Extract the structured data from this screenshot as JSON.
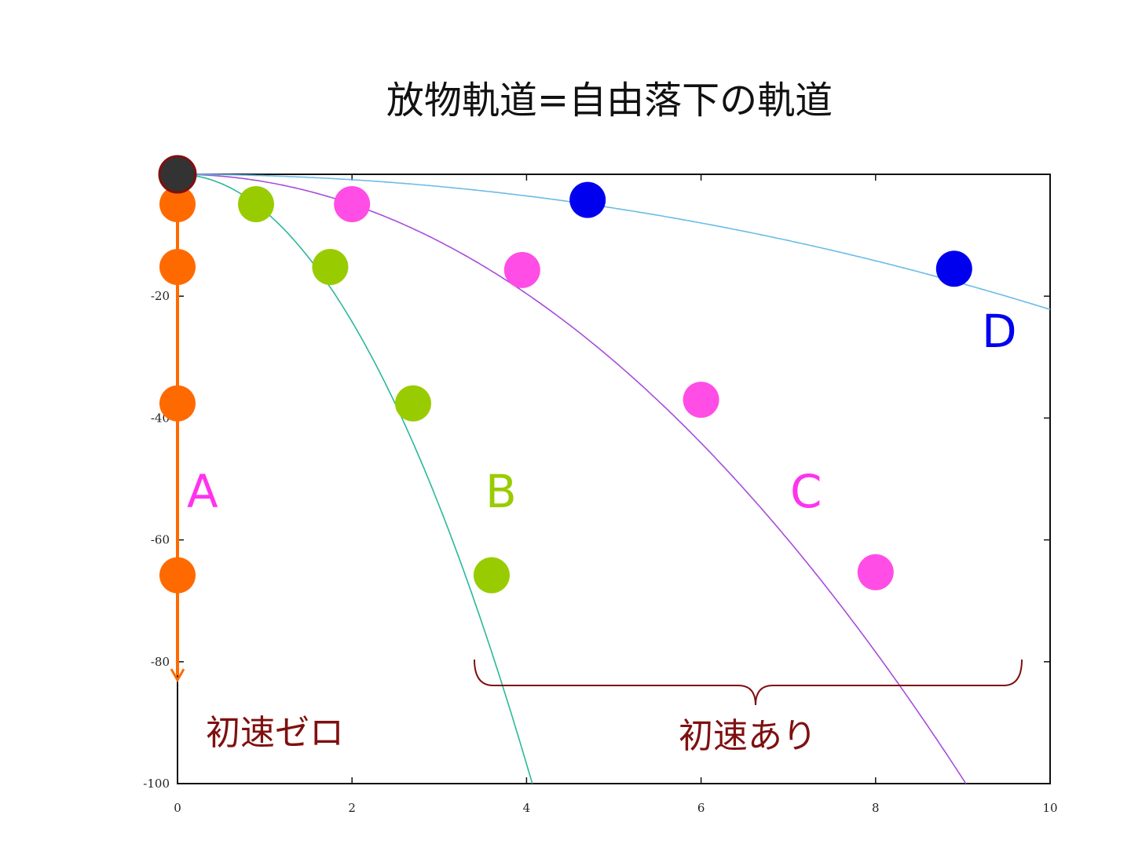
{
  "title": "放物軌道=自由落下の軌道",
  "chart_data": {
    "type": "line",
    "xlim": [
      0,
      10
    ],
    "ylim": [
      -100,
      0
    ],
    "x_ticks": [
      "0",
      "2",
      "4",
      "6",
      "8",
      "10"
    ],
    "y_ticks": [
      "-20",
      "-40",
      "-60",
      "-80",
      "-100"
    ],
    "y_tick_values": [
      -20,
      -40,
      -60,
      -80,
      -100
    ],
    "x_tick_values": [
      0,
      2,
      4,
      6,
      8,
      10
    ],
    "grid": false,
    "series": [
      {
        "name": "A",
        "color": "#ff6a00",
        "vx": 0,
        "points": [
          [
            0,
            -4.9
          ],
          [
            0,
            -15.2
          ],
          [
            0,
            -37.6
          ],
          [
            0,
            -65.8
          ]
        ],
        "arrow_to": -83
      },
      {
        "name": "B",
        "color": "#99cc00",
        "curve_color": "#2bb89a",
        "vx": 0.9,
        "points": [
          [
            0.9,
            -4.9
          ],
          [
            1.75,
            -15.2
          ],
          [
            2.7,
            -37.6
          ],
          [
            3.6,
            -65.8
          ]
        ]
      },
      {
        "name": "C",
        "color": "#ff4de6",
        "curve_color": "#a64ddb",
        "vx": 2.0,
        "points": [
          [
            2.0,
            -4.9
          ],
          [
            3.95,
            -15.7
          ],
          [
            6.0,
            -37.0
          ],
          [
            8.0,
            -65.3
          ]
        ]
      },
      {
        "name": "D",
        "color": "#0000ee",
        "curve_color": "#6cbbe6",
        "vx": 4.7,
        "points": [
          [
            4.7,
            -4.2
          ],
          [
            8.9,
            -15.5
          ]
        ]
      }
    ],
    "origin_marker_color": "#333333",
    "annotations": [
      {
        "text": "初速ゼロ",
        "color": "#7f1010"
      },
      {
        "text": "初速あり",
        "color": "#7f1010"
      }
    ]
  }
}
